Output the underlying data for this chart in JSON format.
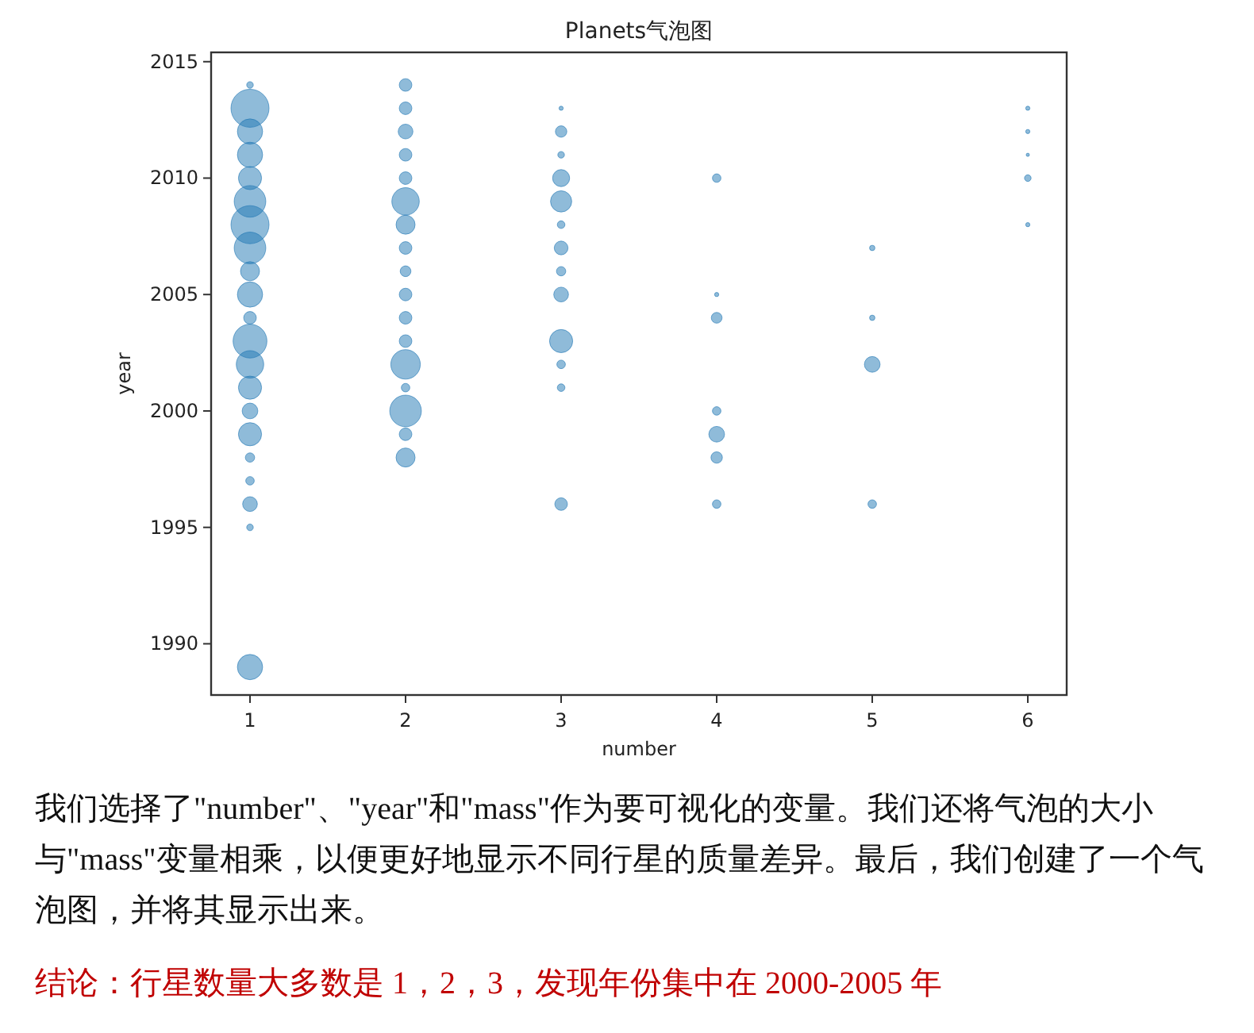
{
  "chart_data": {
    "type": "bubble",
    "title": "Planets气泡图",
    "xlabel": "number",
    "ylabel": "year",
    "xlim": [
      0.75,
      6.25
    ],
    "ylim": [
      1987.8,
      2015.4
    ],
    "xticks": [
      1,
      2,
      3,
      4,
      5,
      6
    ],
    "yticks": [
      1990,
      1995,
      2000,
      2005,
      2010,
      2015
    ],
    "grid": false,
    "series": [
      {
        "color": "#1f77b4",
        "x": [
          1,
          1,
          1,
          1,
          1,
          1,
          1,
          1,
          1,
          1,
          1,
          1,
          1,
          1,
          1,
          1,
          1,
          1,
          1,
          1,
          1,
          2,
          2,
          2,
          2,
          2,
          2,
          2,
          2,
          2,
          2,
          2,
          2,
          2,
          2,
          2,
          2,
          2,
          3,
          3,
          3,
          3,
          3,
          3,
          3,
          3,
          3,
          3,
          3,
          3,
          3,
          4,
          4,
          4,
          4,
          4,
          4,
          4,
          5,
          5,
          5,
          5,
          6,
          6,
          6,
          6,
          6
        ],
        "values": [
          2014,
          2013,
          2012,
          2011,
          2010,
          2009,
          2008,
          2007,
          2006,
          2005,
          2004,
          2003,
          2002,
          2001,
          2000,
          1999,
          1998,
          1997,
          1996,
          1995,
          1989,
          2014,
          2013,
          2012,
          2011,
          2010,
          2009,
          2008,
          2007,
          2006,
          2005,
          2004,
          2003,
          2002,
          2001,
          2000,
          1999,
          1998,
          2013,
          2012,
          2011,
          2010,
          2009,
          2008,
          2007,
          2006,
          2005,
          2003,
          2002,
          2001,
          1996,
          2010,
          2005,
          2004,
          2000,
          1999,
          1998,
          1996,
          2007,
          2004,
          2002,
          1996,
          2013,
          2012,
          2011,
          2010,
          2008
        ],
        "sizes": [
          0.03,
          1,
          0.44,
          0.44,
          0.37,
          0.69,
          1,
          0.69,
          0.25,
          0.44,
          0.11,
          0.79,
          0.52,
          0.37,
          0.17,
          0.37,
          0.06,
          0.05,
          0.15,
          0.03,
          0.44,
          0.11,
          0.11,
          0.15,
          0.11,
          0.11,
          0.52,
          0.25,
          0.11,
          0.08,
          0.11,
          0.11,
          0.11,
          0.6,
          0.05,
          0.69,
          0.11,
          0.25,
          0.012,
          0.09,
          0.03,
          0.2,
          0.31,
          0.04,
          0.13,
          0.06,
          0.15,
          0.37,
          0.05,
          0.04,
          0.11,
          0.05,
          0.012,
          0.08,
          0.05,
          0.17,
          0.09,
          0.05,
          0.02,
          0.02,
          0.17,
          0.05,
          0.012,
          0.012,
          0.007,
          0.03,
          0.012
        ]
      }
    ],
    "annotations": [
      "我们选择了\"number\"、\"year\"和\"mass\"作为要可视化的变量。我们还将气泡的大小与\"mass\"变量相乘，以便更好地显示不同行星的质量差异。最后，我们创建了一个气泡图，并将其显示出来。",
      "结论：行星数量大多数是 1，2，3，发现年份集中在 2000-2005 年"
    ]
  }
}
